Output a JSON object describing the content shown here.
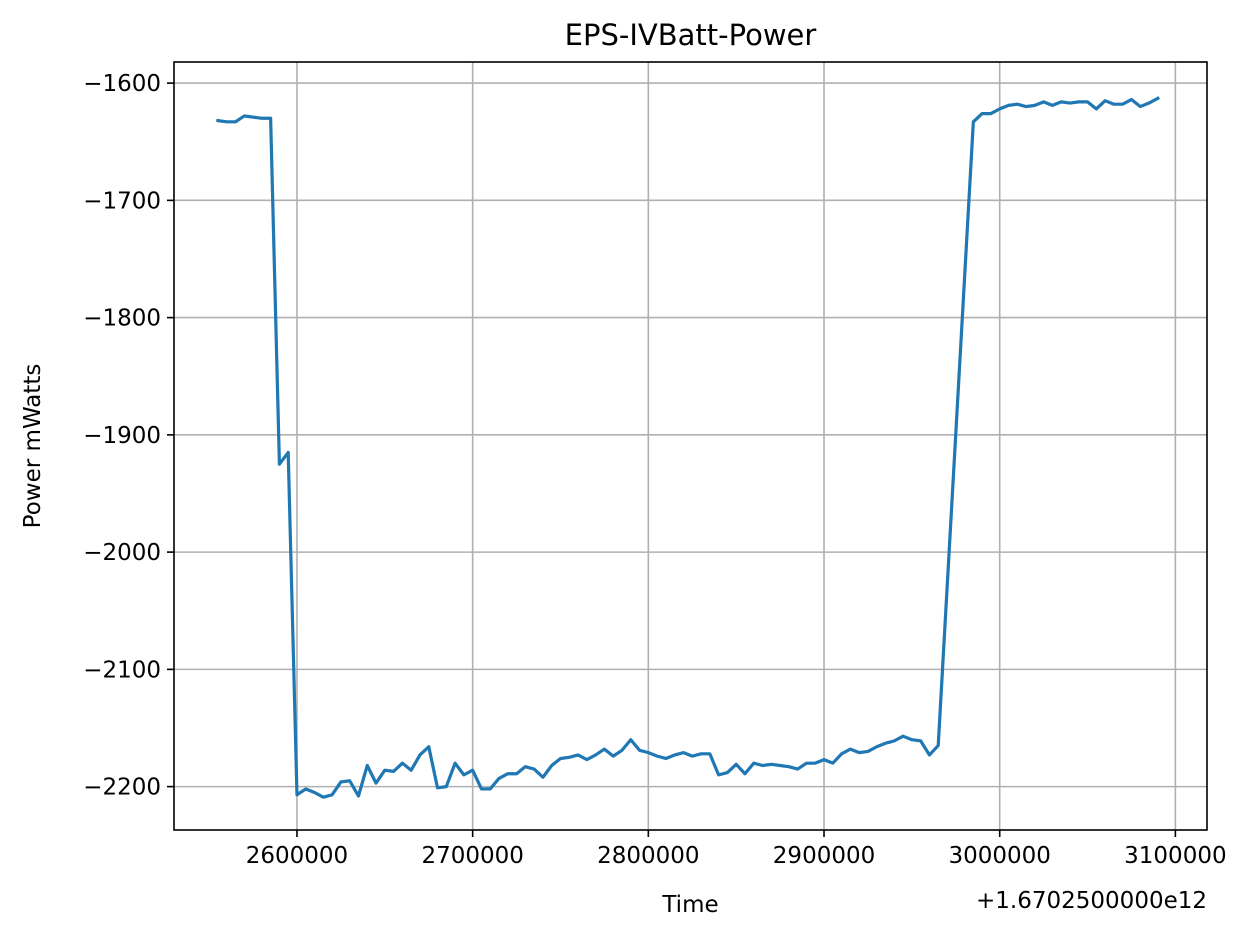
{
  "chart_data": {
    "type": "line",
    "title": "EPS-IVBatt-Power",
    "xlabel": "Time",
    "ylabel": "Power mWatts",
    "x_offset_label": "+1.6702500000e12",
    "xlim": [
      2530000,
      3118000
    ],
    "ylim": [
      -2237,
      -1582
    ],
    "xticks": [
      2600000,
      2700000,
      2800000,
      2900000,
      3000000,
      3100000
    ],
    "xtick_labels": [
      "2600000",
      "2700000",
      "2800000",
      "2900000",
      "3000000",
      "3100000"
    ],
    "yticks": [
      -1600,
      -1700,
      -1800,
      -1900,
      -2000,
      -2100,
      -2200
    ],
    "ytick_labels": [
      "−1600",
      "−1700",
      "−1800",
      "−1900",
      "−2000",
      "−2100",
      "−2200"
    ],
    "grid": true,
    "series": [
      {
        "color": "#1f77b4",
        "x": [
          2555000,
          2560000,
          2565000,
          2570000,
          2575000,
          2580000,
          2585000,
          2590000,
          2595000,
          2600000,
          2605000,
          2610000,
          2615000,
          2620000,
          2625000,
          2630000,
          2635000,
          2640000,
          2645000,
          2650000,
          2655000,
          2660000,
          2665000,
          2670000,
          2675000,
          2680000,
          2685000,
          2690000,
          2695000,
          2700000,
          2705000,
          2710000,
          2715000,
          2720000,
          2725000,
          2730000,
          2735000,
          2740000,
          2745000,
          2750000,
          2755000,
          2760000,
          2765000,
          2770000,
          2775000,
          2780000,
          2785000,
          2790000,
          2795000,
          2800000,
          2805000,
          2810000,
          2815000,
          2820000,
          2825000,
          2830000,
          2835000,
          2840000,
          2845000,
          2850000,
          2855000,
          2860000,
          2865000,
          2870000,
          2875000,
          2880000,
          2885000,
          2890000,
          2895000,
          2900000,
          2905000,
          2910000,
          2915000,
          2920000,
          2925000,
          2930000,
          2935000,
          2940000,
          2945000,
          2950000,
          2955000,
          2960000,
          2965000,
          2985000,
          2990000,
          2995000,
          3000000,
          3005000,
          3010000,
          3015000,
          3020000,
          3025000,
          3030000,
          3035000,
          3040000,
          3045000,
          3050000,
          3055000,
          3060000,
          3065000,
          3070000,
          3075000,
          3080000,
          3085000,
          3090000
        ],
        "y": [
          -1632,
          -1633,
          -1633,
          -1628,
          -1629,
          -1630,
          -1630,
          -1925,
          -1915,
          -2207,
          -2202,
          -2205,
          -2209,
          -2207,
          -2196,
          -2195,
          -2208,
          -2182,
          -2197,
          -2186,
          -2187,
          -2180,
          -2186,
          -2173,
          -2166,
          -2201,
          -2200,
          -2180,
          -2190,
          -2186,
          -2202,
          -2202,
          -2193,
          -2189,
          -2189,
          -2183,
          -2185,
          -2192,
          -2182,
          -2176,
          -2175,
          -2173,
          -2177,
          -2173,
          -2168,
          -2174,
          -2169,
          -2160,
          -2169,
          -2171,
          -2174,
          -2176,
          -2173,
          -2171,
          -2174,
          -2172,
          -2172,
          -2190,
          -2188,
          -2181,
          -2189,
          -2180,
          -2182,
          -2181,
          -2182,
          -2183,
          -2185,
          -2180,
          -2180,
          -2177,
          -2180,
          -2172,
          -2168,
          -2171,
          -2170,
          -2166,
          -2163,
          -2161,
          -2157,
          -2160,
          -2161,
          -2173,
          -2165,
          -1633,
          -1626,
          -1626,
          -1622,
          -1619,
          -1618,
          -1620,
          -1619,
          -1616,
          -1619,
          -1616,
          -1617,
          -1616,
          -1616,
          -1622,
          -1615,
          -1618,
          -1618,
          -1614,
          -1620,
          -1617,
          -1613
        ]
      }
    ]
  }
}
